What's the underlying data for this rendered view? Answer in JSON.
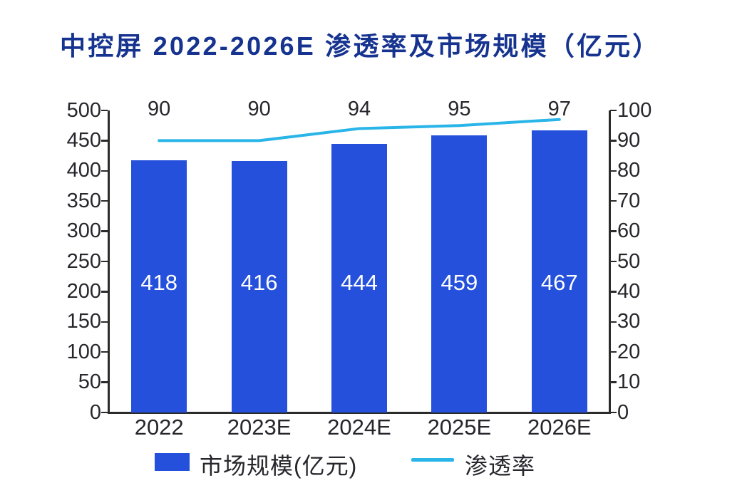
{
  "title": "中控屏 2022-2026E 渗透率及市场规模（亿元）",
  "colors": {
    "title": "#16338f",
    "bar": "#2450dc",
    "line": "#29b5e8",
    "axis": "#2b2b2b",
    "text": "#26262c",
    "bar_label": "#ffffff",
    "background": "#ffffff"
  },
  "chart_data": {
    "type": "bar+line",
    "title": "中控屏 2022-2026E 渗透率及市场规模（亿元）",
    "categories": [
      "2022",
      "2023E",
      "2024E",
      "2025E",
      "2026E"
    ],
    "series": [
      {
        "name": "市场规模(亿元)",
        "type": "bar",
        "axis": "left",
        "values": [
          418,
          416,
          444,
          459,
          467
        ]
      },
      {
        "name": "渗透率",
        "type": "line",
        "axis": "right",
        "values": [
          90,
          90,
          94,
          95,
          97
        ]
      }
    ],
    "ylim_left": [
      0,
      500
    ],
    "ytick_step_left": 50,
    "ylim_right": [
      0,
      100
    ],
    "ytick_step_right": 10,
    "grid": false,
    "legend_position": "bottom",
    "bar_value_labels": [
      "418",
      "416",
      "444",
      "459",
      "467"
    ],
    "line_value_labels": [
      "90",
      "90",
      "94",
      "95",
      "97"
    ]
  },
  "legend": {
    "bar_label": "市场规模(亿元)",
    "line_label": "渗透率"
  }
}
